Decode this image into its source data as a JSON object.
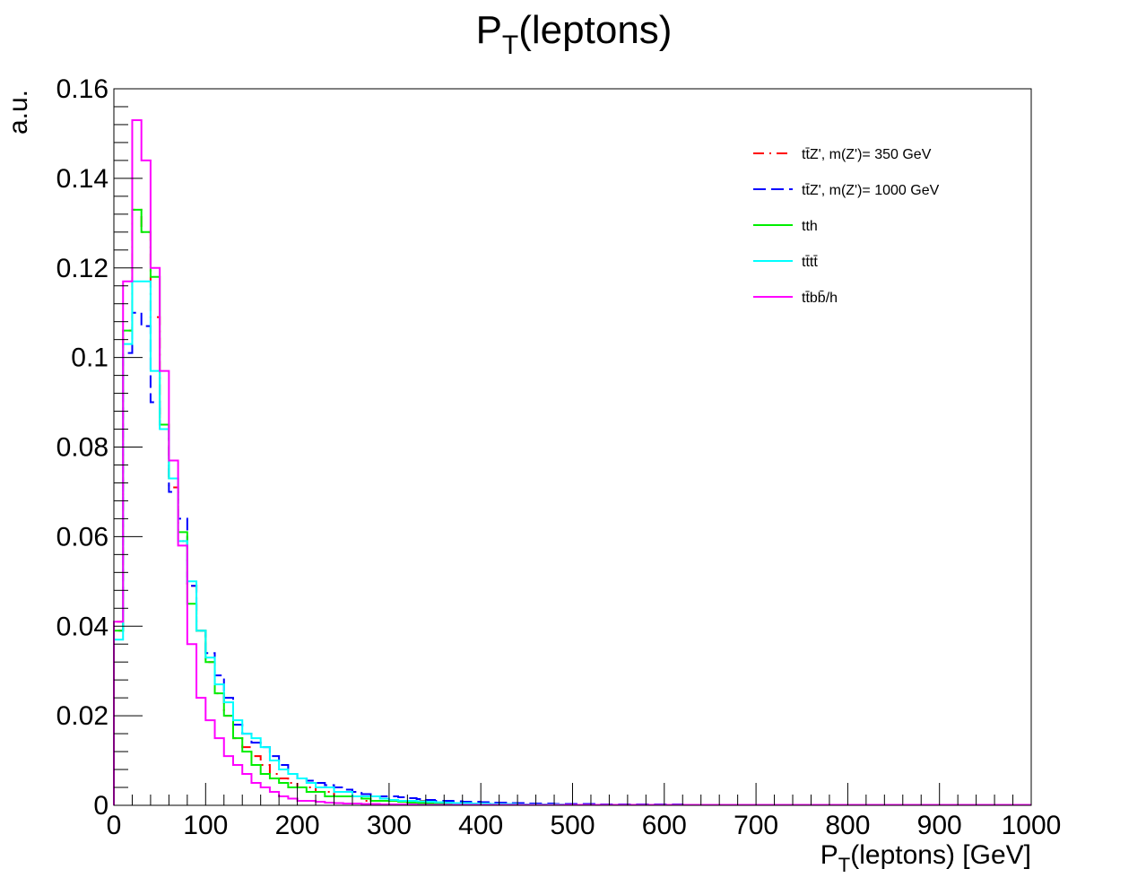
{
  "chart_data": {
    "type": "line",
    "title": "P_T(leptons)",
    "title_main": "P",
    "title_sub": "T",
    "title_rest": "(leptons)",
    "xlabel": "P_T(leptons) [GeV]",
    "xlabel_main": "P",
    "xlabel_sub": "T",
    "xlabel_rest": "(leptons) [GeV]",
    "ylabel": "a.u.",
    "xlim": [
      0,
      1000
    ],
    "ylim": [
      0,
      0.16
    ],
    "x_ticks": [
      0,
      100,
      200,
      300,
      400,
      500,
      600,
      700,
      800,
      900,
      1000
    ],
    "x_tick_labels": [
      "0",
      "100",
      "200",
      "300",
      "400",
      "500",
      "600",
      "700",
      "800",
      "900",
      "1000"
    ],
    "y_ticks": [
      0,
      0.02,
      0.04,
      0.06,
      0.08,
      0.1,
      0.12,
      0.14,
      0.16
    ],
    "y_tick_labels": [
      "0",
      "0.02",
      "0.04",
      "0.06",
      "0.08",
      "0.1",
      "0.12",
      "0.14",
      "0.16"
    ],
    "bin_width": 10,
    "grid": false,
    "legend_position": "top-right",
    "series": [
      {
        "name": "tt̄Z', m(Z')= 350 GeV",
        "color": "#ff0000",
        "dash": "dash-dot",
        "values": [
          0.041,
          0.106,
          0.133,
          0.128,
          0.109,
          0.085,
          0.071,
          0.059,
          0.049,
          0.039,
          0.032,
          0.025,
          0.02,
          0.015,
          0.013,
          0.011,
          0.009,
          0.007,
          0.006,
          0.005,
          0.004,
          0.004,
          0.003,
          0.003,
          0.002,
          0.002,
          0.002,
          0.001,
          0.001,
          0.001,
          0.001,
          0.001,
          0.001,
          0.001,
          0.0005,
          0.0005,
          0.0005,
          0.0004,
          0.0004,
          0.0003,
          0.0003,
          0.0003,
          0.0002,
          0.0002,
          0.0002,
          0.0002,
          0.0001,
          0.0001,
          0.0001,
          0.0001,
          0.0001,
          0.0001,
          0.0001,
          0.0001,
          0.0001,
          0.0001,
          0.0001,
          0.0001,
          0.0001,
          0.0001,
          0.0001,
          0.0001,
          0.0001,
          0.0001,
          0.0001,
          0.0001,
          0.0001,
          0.0001,
          0.0001,
          0.0001,
          0.0001,
          0.0001,
          0.0001,
          0.0001,
          0.0001,
          0.0001,
          0.0001,
          0.0001,
          0.0001,
          0.0001,
          0.0001,
          0.0001,
          0.0001,
          0.0001,
          0.0001,
          0.0001,
          0.0001,
          0.0001,
          0.0001,
          0.0001,
          0.0001,
          0.0001,
          0.0001,
          0.0001,
          0.0001,
          0.0001,
          0.0001,
          0.0001,
          0.0001,
          0.0001
        ]
      },
      {
        "name": "tt̄Z', m(Z')= 1000 GeV",
        "color": "#0000ff",
        "dash": "long-dash",
        "values": [
          0.039,
          0.101,
          0.11,
          0.107,
          0.09,
          0.085,
          0.07,
          0.064,
          0.049,
          0.039,
          0.034,
          0.029,
          0.024,
          0.018,
          0.016,
          0.014,
          0.013,
          0.011,
          0.009,
          0.007,
          0.006,
          0.0055,
          0.005,
          0.0045,
          0.004,
          0.0035,
          0.003,
          0.0025,
          0.002,
          0.002,
          0.002,
          0.0018,
          0.0016,
          0.0014,
          0.0012,
          0.001,
          0.001,
          0.0009,
          0.0008,
          0.0008,
          0.0007,
          0.0006,
          0.0006,
          0.0005,
          0.0005,
          0.0004,
          0.0004,
          0.0004,
          0.0003,
          0.0003,
          0.0003,
          0.0003,
          0.0003,
          0.0002,
          0.0002,
          0.0002,
          0.0002,
          0.0002,
          0.0002,
          0.0002,
          0.0002,
          0.0002,
          0.0001,
          0.0001,
          0.0001,
          0.0001,
          0.0001,
          0.0001,
          0.0001,
          0.0001,
          0.0001,
          0.0001,
          0.0001,
          0.0001,
          0.0001,
          0.0001,
          0.0001,
          0.0001,
          0.0001,
          0.0001,
          0.0001,
          0.0001,
          0.0001,
          0.0001,
          0.0001,
          0.0001,
          0.0001,
          0.0001,
          0.0001,
          0.0001,
          0.0001,
          0.0001,
          0.0001,
          0.0001,
          0.0001,
          0.0001,
          0.0001,
          0.0001,
          0.0001,
          0.0001
        ]
      },
      {
        "name": "tth",
        "color": "#00ee00",
        "dash": "solid",
        "values": [
          0.039,
          0.106,
          0.133,
          0.128,
          0.118,
          0.085,
          0.073,
          0.061,
          0.045,
          0.039,
          0.032,
          0.025,
          0.02,
          0.015,
          0.012,
          0.009,
          0.007,
          0.006,
          0.005,
          0.004,
          0.004,
          0.003,
          0.003,
          0.002,
          0.002,
          0.002,
          0.002,
          0.0015,
          0.001,
          0.001,
          0.001,
          0.0008,
          0.0006,
          0.0005,
          0.0004,
          0.0004,
          0.0003,
          0.0003,
          0.0003,
          0.0002,
          0.0002,
          0.0002,
          0.0002,
          0.0002,
          0.0001,
          0.0001,
          0.0001,
          0.0001,
          0.0001,
          0.0001,
          0.0001,
          0.0001,
          0.0001,
          0.0001,
          0.0001,
          0.0001,
          0.0001,
          0.0001,
          0.0001,
          0.0001,
          0.0001,
          0.0001,
          0.0001,
          0.0001,
          0.0001,
          0.0001,
          0.0001,
          0.0001,
          0.0001,
          0.0001,
          0.0001,
          0.0001,
          0.0001,
          0.0001,
          0.0001,
          0.0001,
          0.0001,
          0.0001,
          0.0001,
          0.0001,
          0.0001,
          0.0001,
          0.0001,
          0.0001,
          0.0001,
          0.0001,
          0.0001,
          0.0001,
          0.0001,
          0.0001,
          0.0001,
          0.0001,
          0.0001,
          0.0001,
          0.0001,
          0.0001,
          0.0001,
          0.0001,
          0.0001,
          0.0001
        ]
      },
      {
        "name": "tt̄tt̄",
        "color": "#00ffff",
        "dash": "solid",
        "values": [
          0.037,
          0.103,
          0.117,
          0.117,
          0.097,
          0.084,
          0.073,
          0.059,
          0.05,
          0.039,
          0.033,
          0.027,
          0.023,
          0.019,
          0.016,
          0.015,
          0.013,
          0.01,
          0.008,
          0.007,
          0.006,
          0.005,
          0.004,
          0.004,
          0.003,
          0.003,
          0.002,
          0.002,
          0.002,
          0.0015,
          0.0012,
          0.001,
          0.001,
          0.0009,
          0.0008,
          0.0007,
          0.0006,
          0.0005,
          0.0005,
          0.0004,
          0.0004,
          0.0003,
          0.0003,
          0.0003,
          0.0002,
          0.0002,
          0.0002,
          0.0002,
          0.0002,
          0.0001,
          0.0001,
          0.0001,
          0.0001,
          0.0001,
          0.0001,
          0.0001,
          0.0001,
          0.0001,
          0.0001,
          0.0001,
          0.0001,
          0.0001,
          0.0001,
          0.0001,
          0.0001,
          0.0001,
          0.0001,
          0.0001,
          0.0001,
          0.0001,
          0.0001,
          0.0001,
          0.0001,
          0.0001,
          0.0001,
          0.0001,
          0.0001,
          0.0001,
          0.0001,
          0.0001,
          0.0001,
          0.0001,
          0.0001,
          0.0001,
          0.0001,
          0.0001,
          0.0001,
          0.0001,
          0.0001,
          0.0001,
          0.0001,
          0.0001,
          0.0001,
          0.0001,
          0.0001,
          0.0001,
          0.0001,
          0.0001,
          0.0001,
          0.0001
        ]
      },
      {
        "name": "tt̄bb̄/h",
        "color": "#ff00ff",
        "dash": "solid",
        "values": [
          0.041,
          0.117,
          0.153,
          0.144,
          0.12,
          0.097,
          0.077,
          0.058,
          0.036,
          0.024,
          0.019,
          0.015,
          0.011,
          0.009,
          0.007,
          0.005,
          0.004,
          0.003,
          0.002,
          0.0015,
          0.001,
          0.001,
          0.0008,
          0.0006,
          0.0005,
          0.0004,
          0.0004,
          0.0003,
          0.0003,
          0.0002,
          0.0002,
          0.0002,
          0.0002,
          0.0001,
          0.0001,
          0.0001,
          0.0001,
          0.0001,
          0.0001,
          0.0001,
          0.0001,
          0.0001,
          0.0001,
          0.0001,
          0.0001,
          0.0001,
          0.0001,
          0.0001,
          0.0001,
          0.0001,
          0.0001,
          0.0001,
          0.0001,
          0.0001,
          0.0001,
          0.0001,
          0.0001,
          0.0001,
          0.0001,
          0.0001,
          0.0001,
          0.0001,
          0.0001,
          0.0001,
          0.0001,
          0.0001,
          0.0001,
          0.0001,
          0.0001,
          0.0001,
          0.0001,
          0.0001,
          0.0001,
          0.0001,
          0.0001,
          0.0001,
          0.0001,
          0.0001,
          0.0001,
          0.0001,
          0.0001,
          0.0001,
          0.0001,
          0.0001,
          0.0001,
          0.0001,
          0.0001,
          0.0001,
          0.0001,
          0.0001,
          0.0001,
          0.0001,
          0.0001,
          0.0001,
          0.0001,
          0.0001,
          0.0001,
          0.0001,
          0.0001,
          0.0001
        ]
      }
    ]
  }
}
